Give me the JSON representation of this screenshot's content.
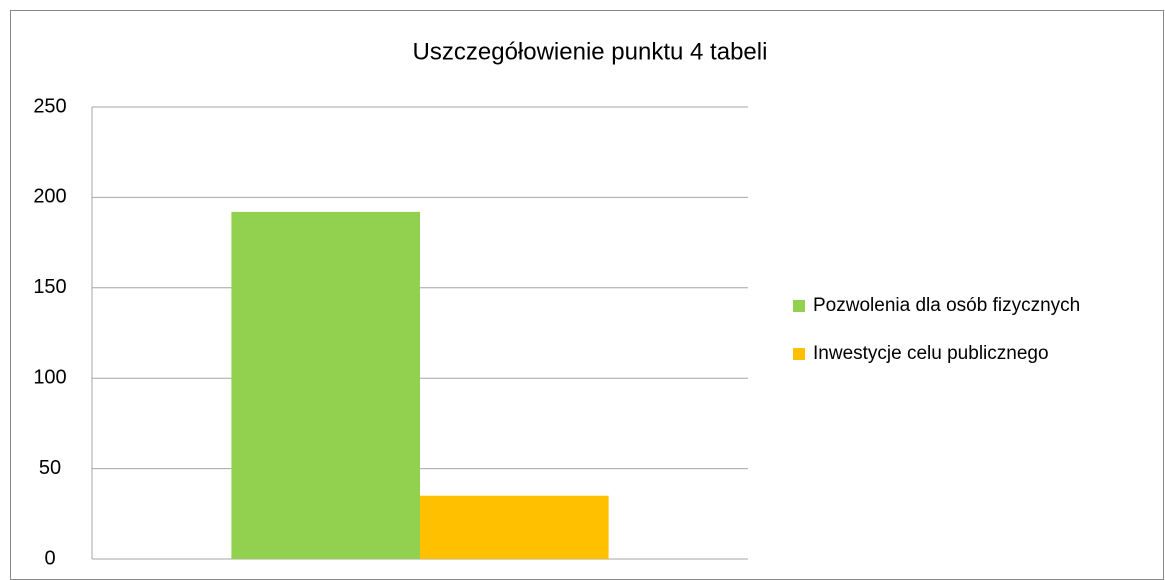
{
  "chart_data": {
    "type": "bar",
    "title": "Uszczegółowienie punktu 4 tabeli",
    "categories": [
      null
    ],
    "series": [
      {
        "name": "Pozwolenia dla osób fizycznych",
        "color": "#92d050",
        "values": [
          192
        ]
      },
      {
        "name": "Inwestycje celu publicznego",
        "color": "#ffc000",
        "values": [
          35
        ]
      }
    ],
    "ylim": [
      0,
      250
    ],
    "yticks": [
      0,
      50,
      100,
      150,
      200,
      250
    ],
    "grid": true,
    "legend": "right"
  }
}
